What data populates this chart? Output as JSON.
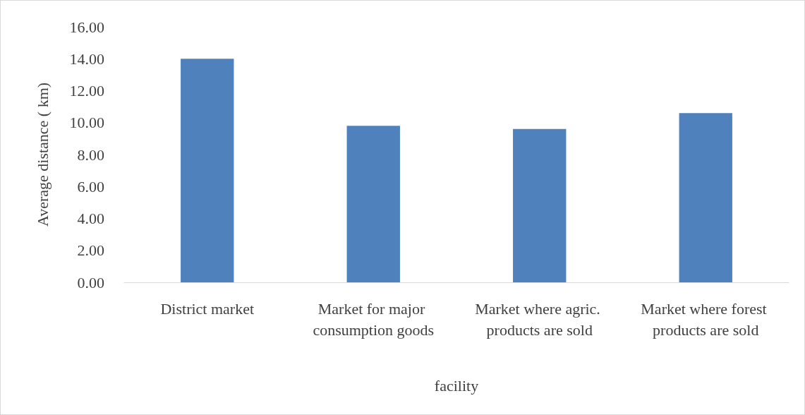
{
  "chart_data": {
    "type": "bar",
    "xlabel": "facility",
    "ylabel": "Average distance ( km)",
    "categories": [
      "District market",
      "Market for major consumption goods",
      "Market where agric. products are sold",
      "Market where forest products are sold"
    ],
    "values": [
      14.0,
      9.8,
      9.6,
      10.6
    ],
    "color": "#4f81bd",
    "ylim": [
      0,
      16
    ],
    "yticks": [
      {
        "value": 0,
        "label": "0.00"
      },
      {
        "value": 2,
        "label": "2.00"
      },
      {
        "value": 4,
        "label": "4.00"
      },
      {
        "value": 6,
        "label": "6.00"
      },
      {
        "value": 8,
        "label": "8.00"
      },
      {
        "value": 10,
        "label": "10.00"
      },
      {
        "value": 12,
        "label": "12.00"
      },
      {
        "value": 14,
        "label": "14.00"
      },
      {
        "value": 16,
        "label": "16.00"
      }
    ],
    "grid": false
  }
}
